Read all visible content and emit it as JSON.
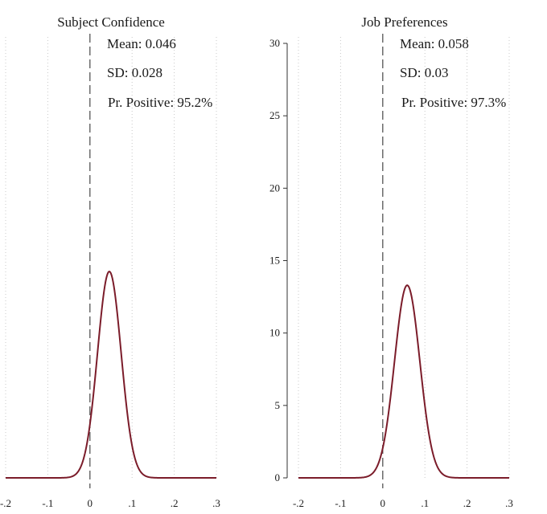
{
  "chart_data": [
    {
      "type": "line",
      "title": "Subject Confidence",
      "annotations": [
        "Mean: 0.046",
        "SD: 0.028",
        "Pr. Positive: 95.2%"
      ],
      "mean": 0.046,
      "sd": 0.028,
      "xlim": [
        -0.2,
        0.3
      ],
      "ylim": [
        0,
        30
      ],
      "x_ticks": [
        -0.2,
        -0.1,
        0,
        0.1,
        0.2,
        0.3
      ],
      "x_tick_labels": [
        "-.2",
        "-.1",
        "0",
        ".1",
        ".2",
        ".3"
      ],
      "y_ticks": [],
      "y_tick_labels": [],
      "reference_line_x": 0,
      "color": "#7b1c2a"
    },
    {
      "type": "line",
      "title": "Job Preferences",
      "annotations": [
        "Mean: 0.058",
        "SD: 0.03",
        "Pr. Positive: 97.3%"
      ],
      "mean": 0.058,
      "sd": 0.03,
      "xlim": [
        -0.2,
        0.3
      ],
      "ylim": [
        0,
        30
      ],
      "x_ticks": [
        -0.2,
        -0.1,
        0,
        0.1,
        0.2,
        0.3
      ],
      "x_tick_labels": [
        "-.2",
        "-.1",
        "0",
        ".1",
        ".2",
        ".3"
      ],
      "y_ticks": [
        0,
        5,
        10,
        15,
        20,
        25,
        30
      ],
      "y_tick_labels": [
        "0",
        "5",
        "10",
        "15",
        "20",
        "25",
        "30"
      ],
      "reference_line_x": 0,
      "color": "#7b1c2a"
    }
  ]
}
